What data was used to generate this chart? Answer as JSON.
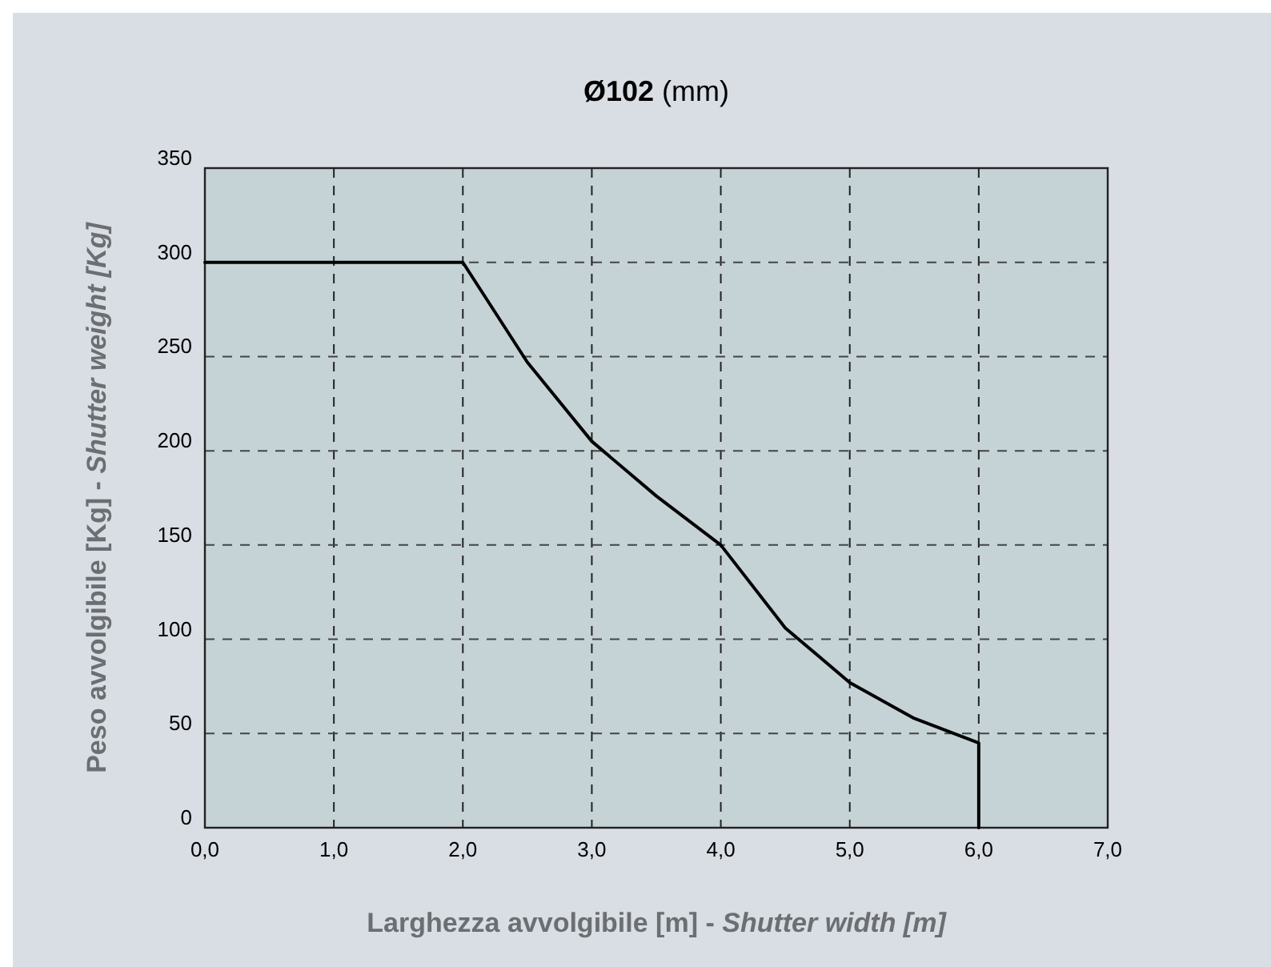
{
  "chart_data": {
    "type": "line",
    "title": "Ø102 (mm)",
    "xlabel": "Larghezza avvolgibile [m] - Shutter width [m]",
    "ylabel": "Peso avvolgibile [Kg] - Shutter weight [Kg]",
    "x": [
      0,
      2,
      2.5,
      3,
      3.5,
      4,
      4.5,
      5,
      5.5,
      6,
      6
    ],
    "series": [
      {
        "color": "#000000",
        "values": [
          300,
          300,
          247,
          205,
          176,
          150,
          106,
          77,
          58,
          45,
          0
        ]
      }
    ],
    "xlim": [
      0,
      7
    ],
    "ylim": [
      0,
      350
    ],
    "xticks": [
      {
        "value": 0,
        "label": "0,0"
      },
      {
        "value": 1,
        "label": "1,0"
      },
      {
        "value": 2,
        "label": "2,0"
      },
      {
        "value": 3,
        "label": "3,0"
      },
      {
        "value": 4,
        "label": "4,0"
      },
      {
        "value": 5,
        "label": "5,0"
      },
      {
        "value": 6,
        "label": "6,0"
      },
      {
        "value": 7,
        "label": "7,0"
      }
    ],
    "yticks": [
      0,
      50,
      100,
      150,
      200,
      250,
      300,
      350
    ],
    "grid": true,
    "marker": "none",
    "line_style": "solid"
  }
}
